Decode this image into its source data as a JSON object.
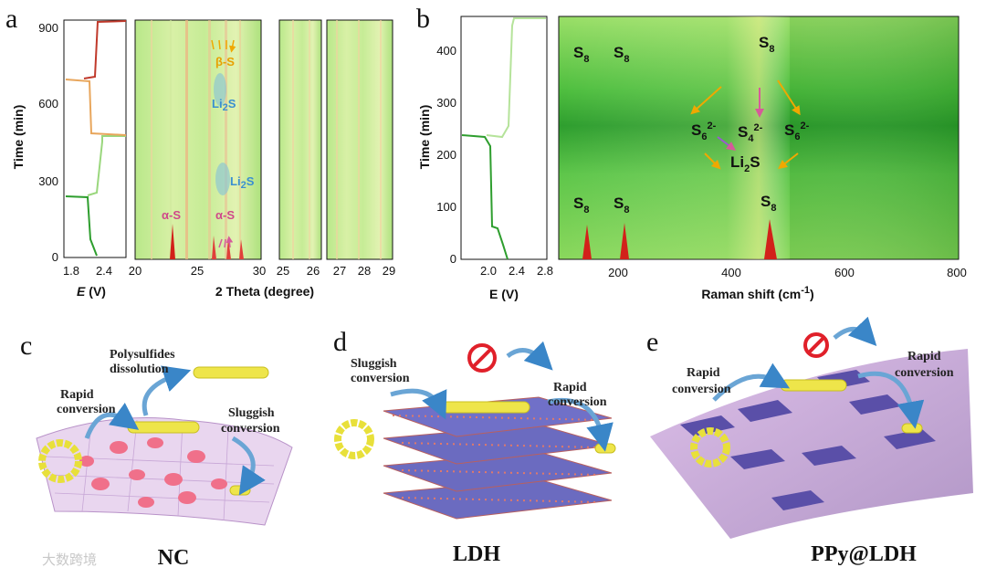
{
  "panel_labels": {
    "a": "a",
    "b": "b",
    "c": "c",
    "d": "d",
    "e": "e"
  },
  "panel_a": {
    "ylabel": "Time (min)",
    "yticks": [
      "0",
      "300",
      "600",
      "900"
    ],
    "e_xticks": [
      "1.8",
      "2.4"
    ],
    "e_xlabel_italic": "E",
    "e_xlabel_unit": " (V)",
    "theta_xticks": [
      "20",
      "25",
      "30",
      "25",
      "26",
      "27",
      "28",
      "29"
    ],
    "theta_xlabel": "2 Theta (degree)",
    "annotations": {
      "beta_s": "β-S",
      "li2s_upper": "Li",
      "li2s_lower": "Li",
      "alpha_s_left": "α-S",
      "alpha_s_right": "α-S",
      "sub2": "2",
      "s": "S"
    }
  },
  "panel_b": {
    "ylabel": "Time (min)",
    "yticks": [
      "0",
      "100",
      "200",
      "300",
      "400"
    ],
    "e_xticks": [
      "2.0",
      "2.4",
      "2.8"
    ],
    "e_xlabel": "E (V)",
    "raman_xticks": [
      "200",
      "400",
      "600",
      "800"
    ],
    "raman_xlabel_main": "Raman shift (cm",
    "raman_xlabel_sup": "-1",
    "raman_xlabel_end": ")",
    "species": {
      "s": "S",
      "n8": "8",
      "n6": "6",
      "n4": "4",
      "n2": "2",
      "charge": "2-",
      "li": "Li"
    }
  },
  "panel_c": {
    "title": "NC",
    "labels": {
      "polysulfides": "Polysulfides",
      "dissolution": "dissolution",
      "rapid": "Rapid",
      "conversion": "conversion",
      "sluggish": "Sluggish",
      "conversion2": "conversion"
    }
  },
  "panel_d": {
    "title": "LDH",
    "labels": {
      "sluggish": "Sluggish",
      "conversion": "conversion",
      "rapid": "Rapid",
      "conversion2": "conversion"
    }
  },
  "panel_e": {
    "title": "PPy@LDH",
    "labels": {
      "rapid": "Rapid",
      "conversion": "conversion",
      "rapid2": "Rapid",
      "conversion2": "conversion"
    }
  },
  "watermark": "大数跨境",
  "colors": {
    "green_dark": "#2e9e2e",
    "green_light": "#9ad77d",
    "orange": "#e8a65c",
    "red": "#c0392b",
    "pink": "#e05a8a",
    "blue": "#3aa0d8",
    "yellow": "#f2ea4a",
    "purple": "#5a4fa8"
  }
}
